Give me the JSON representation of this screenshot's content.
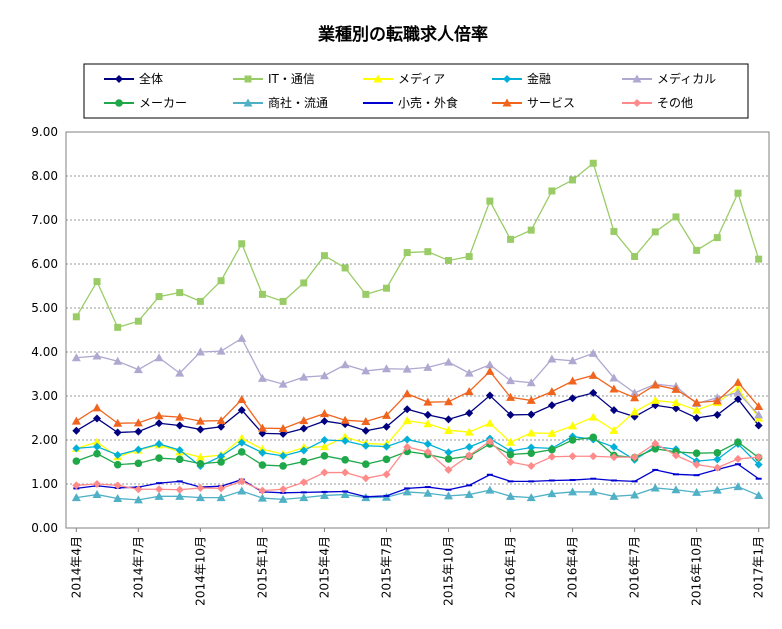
{
  "chart_data": {
    "type": "line",
    "title": "業種別の転職求人倍率",
    "ylim": [
      0,
      9
    ],
    "yticks": [
      "0.00",
      "1.00",
      "2.00",
      "3.00",
      "4.00",
      "5.00",
      "6.00",
      "7.00",
      "8.00",
      "9.00"
    ],
    "grid": "horizontal",
    "legend_position": "top",
    "x": [
      "2014年4月",
      "2014年5月",
      "2014年6月",
      "2014年7月",
      "2014年8月",
      "2014年9月",
      "2014年10月",
      "2014年11月",
      "2014年12月",
      "2015年1月",
      "2015年2月",
      "2015年3月",
      "2015年4月",
      "2015年5月",
      "2015年6月",
      "2015年7月",
      "2015年8月",
      "2015年9月",
      "2015年10月",
      "2015年11月",
      "2015年12月",
      "2016年1月",
      "2016年2月",
      "2016年3月",
      "2016年4月",
      "2016年5月",
      "2016年6月",
      "2016年7月",
      "2016年8月",
      "2016年9月",
      "2016年10月",
      "2016年11月",
      "2016年12月",
      "2017年1月"
    ],
    "xticks": [
      "2014年4月",
      "2014年7月",
      "2014年10月",
      "2015年1月",
      "2015年4月",
      "2015年7月",
      "2015年10月",
      "2016年1月",
      "2016年4月",
      "2016年7月",
      "2016年10月",
      "2017年1月"
    ],
    "series": [
      {
        "name": "全体",
        "color": "#00007f",
        "marker": "diamond",
        "values": [
          2.21,
          2.49,
          2.17,
          2.19,
          2.38,
          2.33,
          2.24,
          2.3,
          2.68,
          2.15,
          2.14,
          2.26,
          2.43,
          2.36,
          2.21,
          2.3,
          2.7,
          2.57,
          2.47,
          2.61,
          3.01,
          2.57,
          2.58,
          2.79,
          2.95,
          3.07,
          2.68,
          2.53,
          2.79,
          2.72,
          2.5,
          2.57,
          2.93,
          2.33
        ]
      },
      {
        "name": "IT・通信",
        "color": "#99cc66",
        "marker": "square",
        "values": [
          4.8,
          5.6,
          4.56,
          4.7,
          5.26,
          5.35,
          5.15,
          5.62,
          6.46,
          5.31,
          5.15,
          5.57,
          6.19,
          5.91,
          5.31,
          5.45,
          6.26,
          6.28,
          6.08,
          6.17,
          7.43,
          6.56,
          6.77,
          7.66,
          7.91,
          8.29,
          6.74,
          6.17,
          6.73,
          7.07,
          6.31,
          6.6,
          7.61,
          6.11
        ]
      },
      {
        "name": "メディア",
        "color": "#ffff00",
        "marker": "triangle",
        "values": [
          1.81,
          1.95,
          1.62,
          1.77,
          1.89,
          1.73,
          1.61,
          1.66,
          2.04,
          1.79,
          1.68,
          1.83,
          1.85,
          2.07,
          1.92,
          1.9,
          2.44,
          2.37,
          2.22,
          2.18,
          2.38,
          1.95,
          2.16,
          2.15,
          2.32,
          2.52,
          2.22,
          2.64,
          2.9,
          2.85,
          2.68,
          2.85,
          3.18,
          2.5
        ]
      },
      {
        "name": "金融",
        "color": "#00b0d8",
        "marker": "diamond",
        "values": [
          1.81,
          1.85,
          1.66,
          1.78,
          1.91,
          1.77,
          1.41,
          1.63,
          1.94,
          1.71,
          1.64,
          1.76,
          2.0,
          1.98,
          1.87,
          1.85,
          2.01,
          1.91,
          1.72,
          1.84,
          2.03,
          1.75,
          1.83,
          1.81,
          2.08,
          2.01,
          1.84,
          1.55,
          1.85,
          1.79,
          1.52,
          1.56,
          1.91,
          1.44
        ]
      },
      {
        "name": "メディカル",
        "color": "#b0a8d0",
        "marker": "triangle",
        "values": [
          3.87,
          3.91,
          3.79,
          3.6,
          3.87,
          3.52,
          4.0,
          4.02,
          4.31,
          3.4,
          3.27,
          3.43,
          3.46,
          3.71,
          3.57,
          3.62,
          3.61,
          3.65,
          3.77,
          3.52,
          3.71,
          3.35,
          3.3,
          3.84,
          3.8,
          3.97,
          3.41,
          3.07,
          3.27,
          3.22,
          2.83,
          2.96,
          3.08,
          2.57
        ]
      },
      {
        "name": "メーカー",
        "color": "#1fa84a",
        "marker": "circle",
        "values": [
          1.52,
          1.69,
          1.44,
          1.47,
          1.59,
          1.56,
          1.46,
          1.5,
          1.73,
          1.43,
          1.41,
          1.51,
          1.64,
          1.55,
          1.45,
          1.56,
          1.74,
          1.67,
          1.57,
          1.63,
          1.91,
          1.67,
          1.7,
          1.78,
          2.0,
          2.06,
          1.65,
          1.6,
          1.8,
          1.73,
          1.7,
          1.71,
          1.95,
          1.6
        ]
      },
      {
        "name": "商社・流通",
        "color": "#4fb0c6",
        "marker": "triangle",
        "values": [
          0.69,
          0.76,
          0.67,
          0.64,
          0.72,
          0.72,
          0.69,
          0.69,
          0.84,
          0.68,
          0.65,
          0.69,
          0.74,
          0.76,
          0.69,
          0.7,
          0.82,
          0.79,
          0.73,
          0.76,
          0.86,
          0.72,
          0.69,
          0.78,
          0.82,
          0.82,
          0.72,
          0.75,
          0.91,
          0.87,
          0.81,
          0.86,
          0.94,
          0.74
        ]
      },
      {
        "name": "小売・外食",
        "color": "#0000d0",
        "marker": "dash",
        "values": [
          0.9,
          0.96,
          0.91,
          0.93,
          1.02,
          1.06,
          0.93,
          0.95,
          1.1,
          0.82,
          0.8,
          0.81,
          0.82,
          0.83,
          0.71,
          0.73,
          0.9,
          0.93,
          0.87,
          0.97,
          1.21,
          1.06,
          1.06,
          1.08,
          1.09,
          1.12,
          1.08,
          1.06,
          1.32,
          1.22,
          1.2,
          1.33,
          1.45,
          1.12
        ]
      },
      {
        "name": "サービス",
        "color": "#f0641e",
        "marker": "triangle",
        "values": [
          2.43,
          2.73,
          2.38,
          2.39,
          2.55,
          2.52,
          2.43,
          2.44,
          2.92,
          2.27,
          2.26,
          2.44,
          2.6,
          2.45,
          2.42,
          2.56,
          3.05,
          2.86,
          2.87,
          3.1,
          3.56,
          2.97,
          2.9,
          3.1,
          3.34,
          3.47,
          3.16,
          2.96,
          3.25,
          3.15,
          2.85,
          2.89,
          3.31,
          2.76
        ]
      },
      {
        "name": "その他",
        "color": "#ff8a8a",
        "marker": "diamond",
        "values": [
          0.97,
          1.0,
          0.97,
          0.88,
          0.88,
          0.87,
          0.91,
          0.9,
          1.06,
          0.85,
          0.88,
          1.04,
          1.26,
          1.26,
          1.13,
          1.22,
          1.84,
          1.73,
          1.32,
          1.65,
          1.97,
          1.5,
          1.41,
          1.62,
          1.63,
          1.63,
          1.61,
          1.61,
          1.92,
          1.65,
          1.44,
          1.37,
          1.57,
          1.61
        ]
      }
    ]
  }
}
